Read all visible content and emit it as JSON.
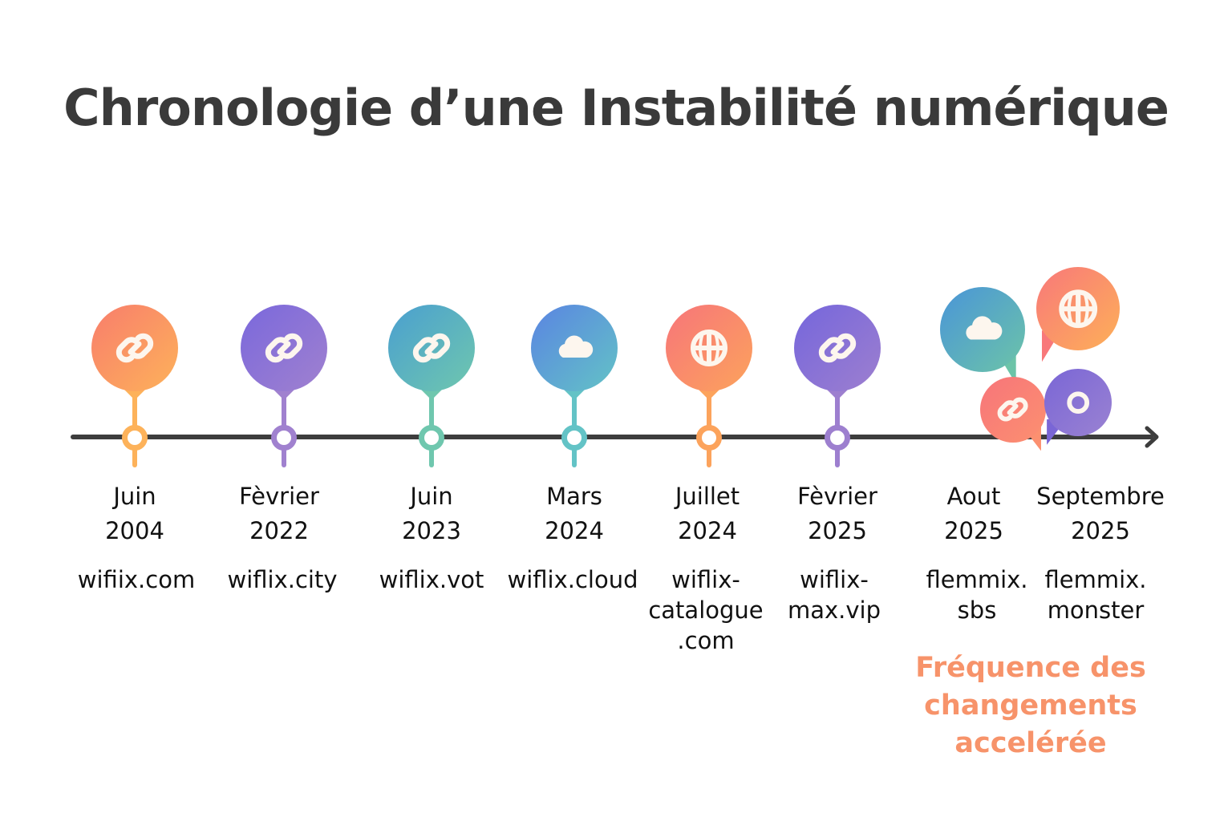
{
  "title": "Chronologie d’une Instabilité numérique",
  "events": [
    {
      "month": "Juin",
      "year": "2004",
      "domain": "wifiix.com",
      "icon": "link-icon",
      "colors": [
        "#f87d6c",
        "#fdb25a"
      ]
    },
    {
      "month": "Fèvrier",
      "year": "2022",
      "domain": "wiflix.city",
      "icon": "link-icon",
      "colors": [
        "#7a68dc",
        "#a081cf"
      ]
    },
    {
      "month": "Juin",
      "year": "2023",
      "domain": "wiflix.vot",
      "icon": "link-icon",
      "colors": [
        "#4a9fd0",
        "#6fc7ae"
      ]
    },
    {
      "month": "Mars",
      "year": "2024",
      "domain": "wiflix.cloud",
      "icon": "cloud-icon",
      "colors": [
        "#5a84e2",
        "#63c3c6"
      ]
    },
    {
      "month": "Juillet",
      "year": "2024",
      "domain": "wiflix-catalogue .com",
      "icon": "globe-icon",
      "colors": [
        "#f7757a",
        "#fca35c"
      ]
    },
    {
      "month": "Fèvrier",
      "year": "2025",
      "domain": "wiflix-max.vip",
      "icon": "link-icon",
      "colors": [
        "#7566dc",
        "#9d7fcf"
      ]
    },
    {
      "month": "Aout",
      "year": "2025",
      "domain": "flemmix. sbs",
      "icon": "link-icon",
      "colors": [
        "#f7757a",
        "#fc9070"
      ]
    },
    {
      "month": "Septembre",
      "year": "2025",
      "domain": "flemmix. monster",
      "icon": "circle-icon",
      "colors": [
        "#7a66d6",
        "#9a82d2"
      ]
    }
  ],
  "extra_bubbles": [
    {
      "icon": "cloud-icon",
      "colors": [
        "#4a95d8",
        "#6cc4a8"
      ]
    },
    {
      "icon": "globe-icon",
      "colors": [
        "#f8787a",
        "#fdb058"
      ]
    }
  ],
  "note": "Fréquence des changements accelérée",
  "colors": {
    "axis": "#3d3d3d",
    "note": "#f7936a",
    "title": "#3a3a3a"
  }
}
